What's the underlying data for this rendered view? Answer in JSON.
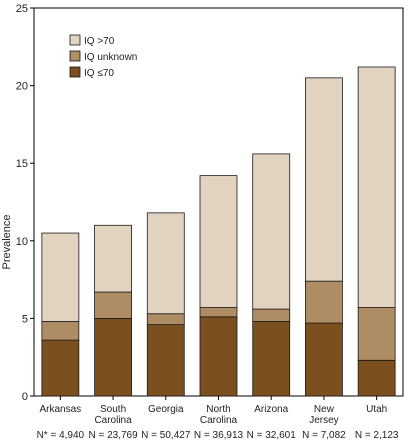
{
  "chart_data": {
    "type": "bar",
    "stacked": true,
    "title": "",
    "xlabel": "",
    "ylabel": "Prevalence",
    "ylim": [
      0,
      25
    ],
    "yticks": [
      0,
      5,
      10,
      15,
      20,
      25
    ],
    "grid": false,
    "legend_position": "top-left",
    "categories": [
      [
        "Arkansas"
      ],
      [
        "South",
        "Carolina"
      ],
      [
        "Georgia"
      ],
      [
        "North",
        "Carolina"
      ],
      [
        "Arizona"
      ],
      [
        "New",
        "Jersey"
      ],
      [
        "Utah"
      ]
    ],
    "n_labels": [
      "N* = 4,940",
      "N = 23,769",
      "N = 50,427",
      "N = 36,913",
      "N = 32,601",
      "N = 7,082",
      "N = 2,123"
    ],
    "series": [
      {
        "name": "IQ ≤70",
        "color": "#7b4f1e",
        "values": [
          3.6,
          5.0,
          4.6,
          5.1,
          4.8,
          4.7,
          2.3
        ]
      },
      {
        "name": "IQ unknown",
        "color": "#ae8c64",
        "values": [
          1.2,
          1.7,
          0.7,
          0.6,
          0.8,
          2.7,
          3.4
        ]
      },
      {
        "name": "IQ >70",
        "color": "#e2d2c0",
        "values": [
          5.7,
          4.3,
          6.5,
          8.5,
          10.0,
          13.1,
          15.5
        ]
      }
    ],
    "legend_order": [
      2,
      1,
      0
    ]
  }
}
